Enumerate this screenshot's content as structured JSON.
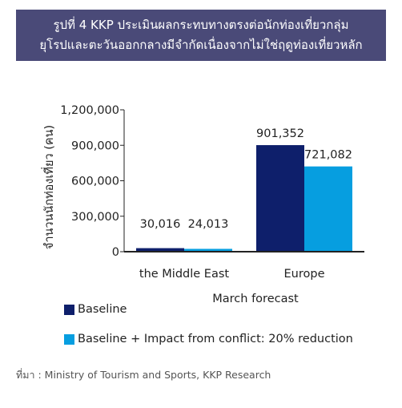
{
  "title": {
    "line1": "รูปที่ 4 KKP ประเมินผลกระทบทางตรงต่อนักท่องเที่ยวกลุ่ม",
    "line2": "ยุโรปและตะวันออกกลางมีจำกัดเนื่องจากไม่ใช่ฤดูท่องเที่ยวหลัก"
  },
  "source": "ที่มา : Ministry of Tourism and Sports, KKP Research",
  "colors": {
    "title_bg": "#4a4a78",
    "baseline": "#0e1f6b",
    "impact": "#069ee0",
    "axis": "#222222"
  },
  "chart_data": {
    "type": "bar",
    "categories": [
      "the Middle East",
      "Europe"
    ],
    "series": [
      {
        "name": "Baseline",
        "values": [
          30016,
          901352
        ],
        "labels": [
          "30,016",
          "901,352"
        ],
        "color": "#0e1f6b"
      },
      {
        "name": "Baseline + Impact from conflict: 20% reduction",
        "values": [
          24013,
          721082
        ],
        "labels": [
          "24,013",
          "721,082"
        ],
        "color": "#069ee0"
      }
    ],
    "xlabel": "March forecast",
    "ylabel": "จำนวนนักท่องเที่ยว (คน)",
    "ylim": [
      0,
      1200000
    ],
    "yticks": [
      0,
      300000,
      600000,
      900000,
      1200000
    ],
    "ytick_labels": [
      "0",
      "300,000",
      "600,000",
      "900,000",
      "1,200,000"
    ],
    "grid": false,
    "legend_position": "bottom-left"
  }
}
